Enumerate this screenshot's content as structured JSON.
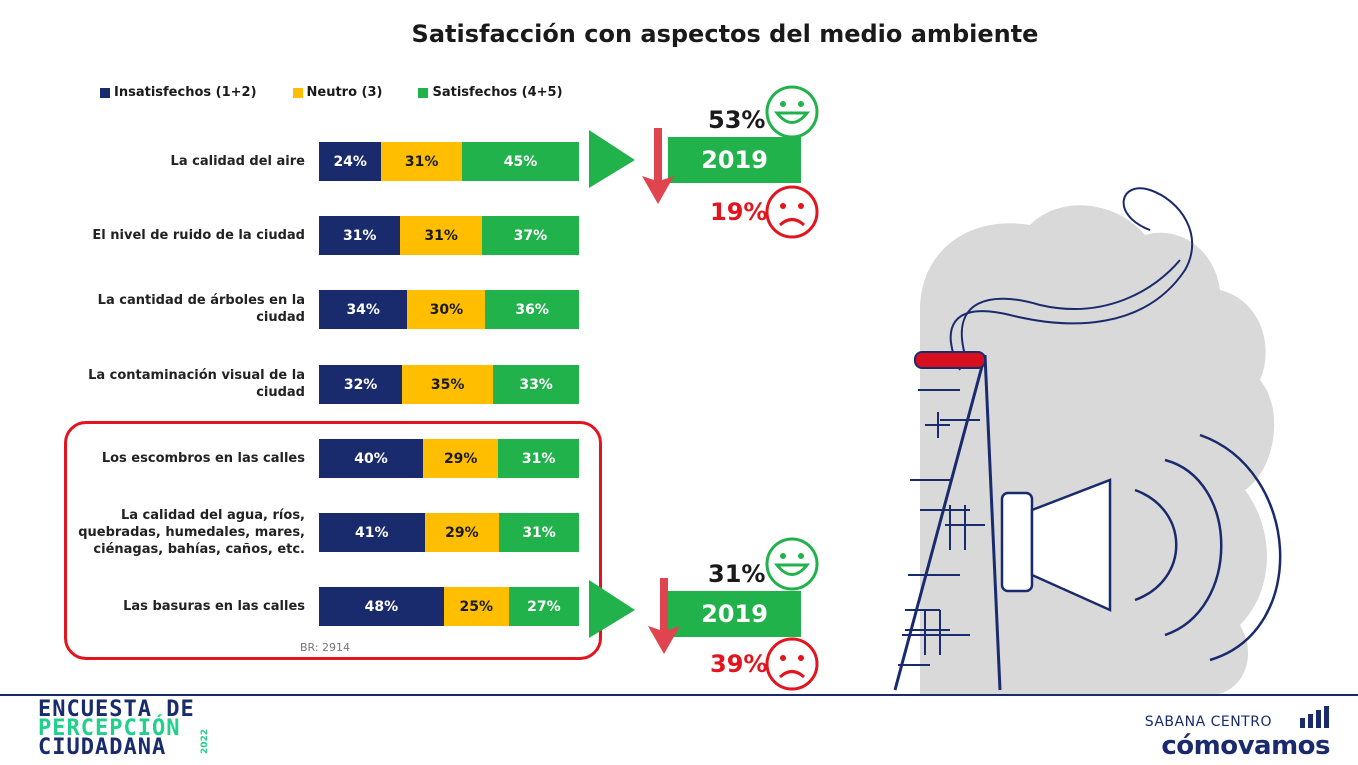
{
  "chart_data": {
    "type": "bar",
    "title": "Satisfacción con aspectos del medio ambiente",
    "legend": [
      {
        "name": "Insatisfechos (1+2)",
        "color": "#1a2b6d"
      },
      {
        "name": "Neutro (3)",
        "color": "#ffbf00"
      },
      {
        "name": "Satisfechos (4+5)",
        "color": "#22b24c"
      }
    ],
    "categories": [
      "La calidad del aire",
      "El nivel de ruido de la ciudad",
      "La cantidad de árboles en la ciudad",
      "La contaminación visual de la ciudad",
      "Los escombros en las calles",
      "La calidad del agua, ríos, quebradas, humedales, mares, ciénagas, bahías, caños, etc.",
      "Las basuras en las calles"
    ],
    "series": [
      {
        "name": "Insatisfechos (1+2)",
        "values": [
          24,
          31,
          34,
          32,
          40,
          41,
          48
        ]
      },
      {
        "name": "Neutro (3)",
        "values": [
          31,
          31,
          30,
          35,
          29,
          29,
          25
        ]
      },
      {
        "name": "Satisfechos (4+5)",
        "values": [
          45,
          37,
          36,
          33,
          31,
          31,
          27
        ]
      }
    ],
    "labels": [
      [
        "24%",
        "31%",
        "45%"
      ],
      [
        "31%",
        "31%",
        "37%"
      ],
      [
        "34%",
        "30%",
        "36%"
      ],
      [
        "32%",
        "35%",
        "33%"
      ],
      [
        "40%",
        "29%",
        "31%"
      ],
      [
        "41%",
        "29%",
        "31%"
      ],
      [
        "48%",
        "25%",
        "27%"
      ]
    ],
    "base_note": "BR: 2914",
    "highlighted_categories": [
      4,
      5,
      6
    ],
    "comparisons": [
      {
        "category_index": 0,
        "year": "2019",
        "satisfied": "53%",
        "dissatisfied": "19%",
        "trend": "down"
      },
      {
        "category_index": 6,
        "year": "2019",
        "satisfied": "31%",
        "dissatisfied": "39%",
        "trend": "down"
      }
    ]
  },
  "footer": {
    "left_logo_lines": [
      "ENCUESTA DE",
      "PERCEPCIÓN",
      "CIUDADANA"
    ],
    "left_logo_year": "2022",
    "right_logo_top": "SABANA CENTRO",
    "right_logo_bottom": "cómovamos"
  },
  "colors": {
    "accent_red": "#e3141e",
    "green_face": "#22b24c",
    "navy": "#1a2b6d"
  },
  "icons": [
    "smiley-happy-icon",
    "smiley-sad-icon",
    "down-arrow-icon",
    "play-triangle-icon",
    "factory-chimney-illustration",
    "speaker-illustration",
    "bar-chart-icon"
  ]
}
